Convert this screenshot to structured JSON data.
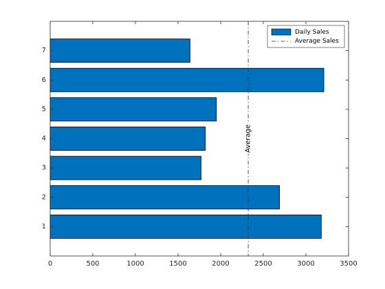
{
  "chart_data": {
    "type": "bar",
    "orientation": "horizontal",
    "title": "",
    "xlabel": "",
    "ylabel": "",
    "categories": [
      "1",
      "2",
      "3",
      "4",
      "5",
      "6",
      "7"
    ],
    "series": [
      {
        "name": "Daily Sales",
        "values": [
          3180,
          2690,
          1770,
          1820,
          1950,
          3210,
          1640
        ],
        "color": "#0072BD"
      }
    ],
    "xlim": [
      0,
      3500
    ],
    "xticks": [
      0,
      500,
      1000,
      1500,
      2000,
      2500,
      3000,
      3500
    ],
    "ylim": [
      0,
      8
    ],
    "yticks": [
      1,
      2,
      3,
      4,
      5,
      6,
      7
    ],
    "reference_line": {
      "name": "Average Sales",
      "value": 2323,
      "style": "dash-dot",
      "color": "#262626",
      "label": "Average"
    },
    "legend": {
      "position": "top-right",
      "entries": [
        "Daily Sales",
        "Average Sales"
      ]
    },
    "grid": false
  }
}
